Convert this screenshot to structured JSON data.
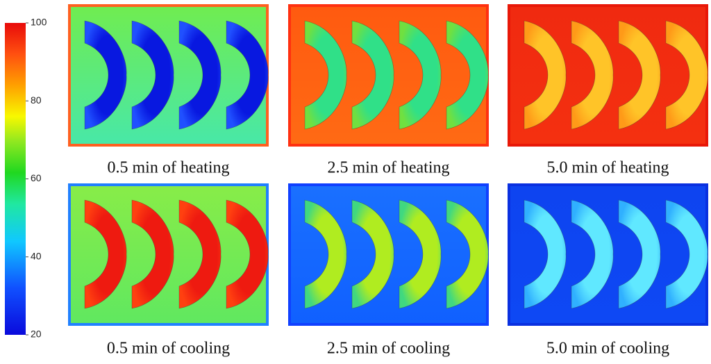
{
  "colorbar": {
    "range": [
      20,
      100
    ],
    "ticks": [
      100,
      80,
      60,
      40,
      20
    ]
  },
  "panels": [
    {
      "caption": "0.5 min of heating"
    },
    {
      "caption": "2.5 min of heating"
    },
    {
      "caption": "5.0 min of heating"
    },
    {
      "caption": "0.5 min of cooling"
    },
    {
      "caption": "2.5 min of cooling"
    },
    {
      "caption": "5.0 min of cooling"
    }
  ]
}
